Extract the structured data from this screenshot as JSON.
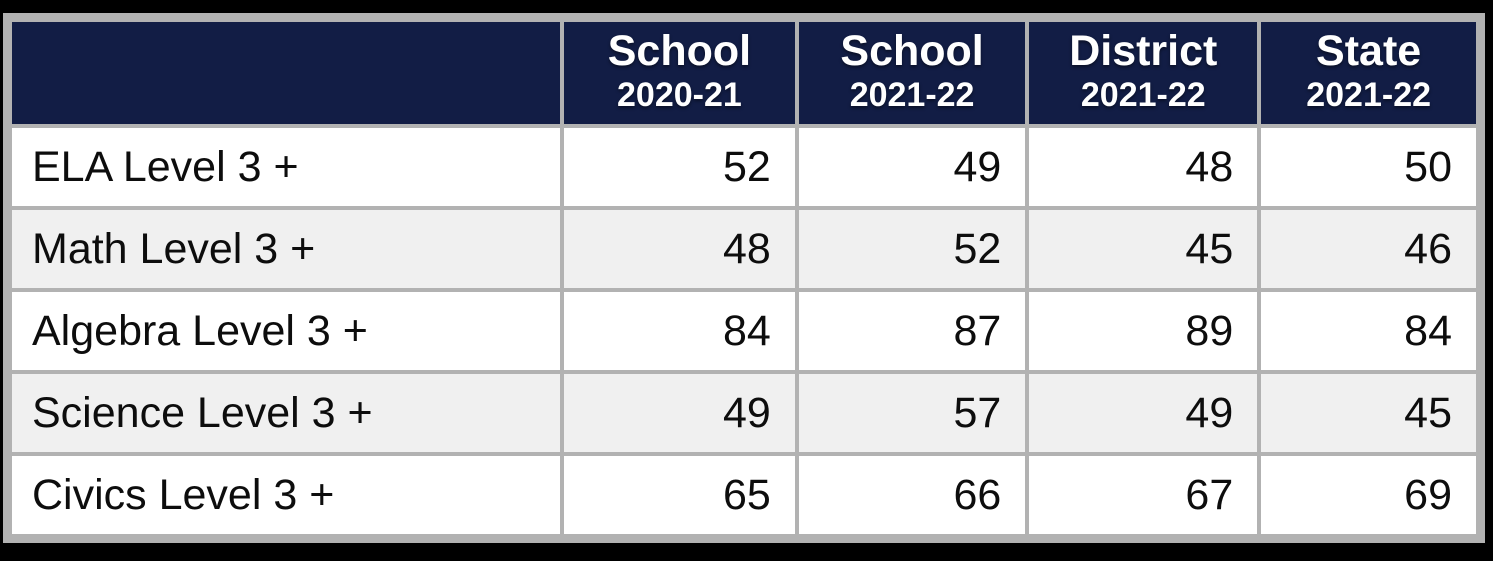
{
  "table": {
    "columns": [
      {
        "line1": "",
        "line2": ""
      },
      {
        "line1": "School",
        "line2": "2020-21"
      },
      {
        "line1": "School",
        "line2": "2021-22"
      },
      {
        "line1": "District",
        "line2": "2021-22"
      },
      {
        "line1": "State",
        "line2": "2021-22"
      }
    ],
    "rows": [
      {
        "label": "ELA Level 3 +",
        "values": [
          52,
          49,
          48,
          50
        ]
      },
      {
        "label": "Math Level 3 +",
        "values": [
          48,
          52,
          45,
          46
        ]
      },
      {
        "label": "Algebra Level 3 +",
        "values": [
          84,
          87,
          89,
          84
        ]
      },
      {
        "label": "Science Level 3 +",
        "values": [
          49,
          57,
          49,
          45
        ]
      },
      {
        "label": "Civics Level 3 +",
        "values": [
          65,
          66,
          67,
          69
        ]
      }
    ],
    "colors": {
      "header_bg": "#121d45",
      "header_text": "#ffffff",
      "row_bg": "#ffffff",
      "row_alt_bg": "#f0f0f0",
      "grid": "#b2b2b2",
      "outer_frame": "#000000",
      "body_text": "#0d0d0d"
    }
  },
  "chart_data": {
    "type": "table",
    "columns": [
      "",
      "School 2020-21",
      "School 2021-22",
      "District 2021-22",
      "State 2021-22"
    ],
    "rows": [
      [
        "ELA Level 3 +",
        52,
        49,
        48,
        50
      ],
      [
        "Math Level 3 +",
        48,
        52,
        45,
        46
      ],
      [
        "Algebra Level 3 +",
        84,
        87,
        89,
        84
      ],
      [
        "Science Level 3 +",
        49,
        57,
        49,
        45
      ],
      [
        "Civics Level 3 +",
        65,
        66,
        67,
        69
      ]
    ]
  }
}
